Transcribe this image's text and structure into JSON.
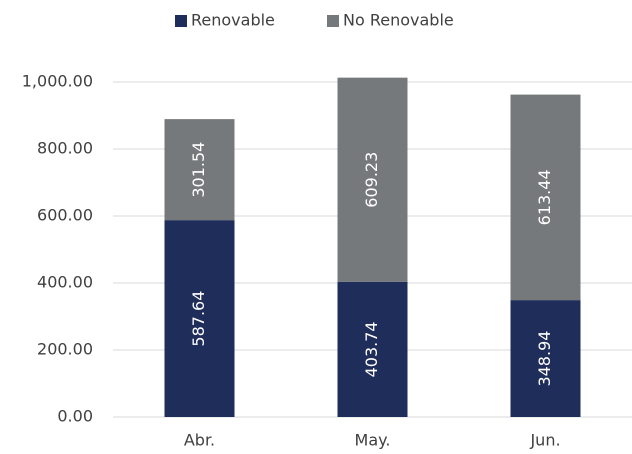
{
  "chart_data": {
    "type": "stacked_bar",
    "categories": [
      "Abr.",
      "May.",
      "Jun."
    ],
    "series": [
      {
        "name": "Renovable",
        "color": "#1f2d5a",
        "values": [
          587.64,
          403.74,
          348.94
        ]
      },
      {
        "name": "No Renovable",
        "color": "#76797b",
        "values": [
          301.54,
          609.23,
          613.44
        ]
      }
    ],
    "ylim": [
      0,
      1000
    ],
    "yticks": [
      {
        "value": 0,
        "label": "0.00"
      },
      {
        "value": 200,
        "label": "200.00"
      },
      {
        "value": 400,
        "label": "400.00"
      },
      {
        "value": 600,
        "label": "600.00"
      },
      {
        "value": 800,
        "label": "800.00"
      },
      {
        "value": 1000,
        "label": "1,000.00"
      }
    ],
    "grid": true,
    "legend": "top"
  }
}
